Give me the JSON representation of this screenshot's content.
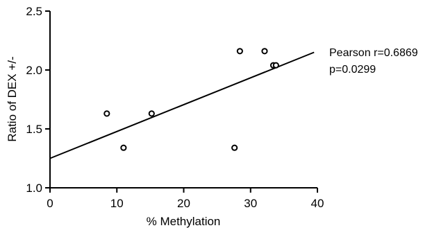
{
  "chart_data": {
    "type": "scatter",
    "title": "",
    "xlabel": "% Methylation",
    "ylabel": "Ratio of DEX +/-",
    "xlim": [
      0,
      40
    ],
    "ylim": [
      1.0,
      2.5
    ],
    "x_ticks": [
      0,
      10,
      20,
      30,
      40
    ],
    "y_ticks": [
      1.0,
      1.5,
      2.0,
      2.5
    ],
    "x_tick_labels": [
      "0",
      "10",
      "20",
      "30",
      "40"
    ],
    "y_tick_labels": [
      "1.0",
      "1.5",
      "2.0",
      "2.5"
    ],
    "grid": false,
    "marker": "open-circle",
    "points": [
      {
        "x": 8.5,
        "y": 1.63
      },
      {
        "x": 11.0,
        "y": 1.34
      },
      {
        "x": 15.2,
        "y": 1.63
      },
      {
        "x": 27.6,
        "y": 1.34
      },
      {
        "x": 28.4,
        "y": 2.16
      },
      {
        "x": 32.1,
        "y": 2.16
      },
      {
        "x": 33.4,
        "y": 2.04
      },
      {
        "x": 33.8,
        "y": 2.04
      }
    ],
    "regression_line": {
      "x_start": 0,
      "y_start": 1.25,
      "x_end": 39.5,
      "y_end": 2.15
    },
    "annotations": [
      "Pearson r=0.6869",
      "p=0.0299"
    ],
    "colors": {
      "axis": "#000000",
      "marker_stroke": "#000000",
      "marker_fill": "#ffffff",
      "line": "#000000"
    }
  }
}
